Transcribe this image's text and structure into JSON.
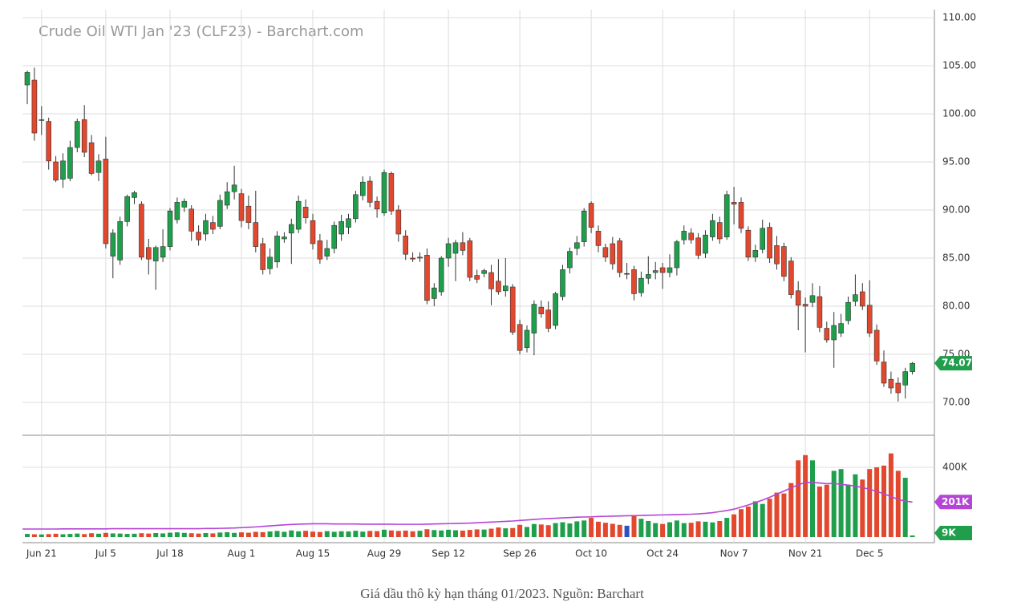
{
  "chart_data": {
    "type": "candlestick",
    "title": "Crude Oil WTI Jan '23 (CLF23) - Barchart.com",
    "caption": "Giá dầu thô kỳ hạn tháng 01/2023. Nguồn: Barchart",
    "up_color": "#1f9e4c",
    "down_color": "#e2482e",
    "flat_color": "#2f4fc4",
    "grid": true,
    "ylim": [
      66.5,
      110.7
    ],
    "yticks": [
      {
        "value": 70,
        "label": "70.00"
      },
      {
        "value": 75,
        "label": "75.00"
      },
      {
        "value": 80,
        "label": "80.00"
      },
      {
        "value": 85,
        "label": "85.00"
      },
      {
        "value": 90,
        "label": "90.00"
      },
      {
        "value": 95,
        "label": "95.00"
      },
      {
        "value": 100,
        "label": "100.00"
      },
      {
        "value": 105,
        "label": "105.00"
      },
      {
        "value": 110,
        "label": "110.00"
      }
    ],
    "y2lim": [
      0,
      584000
    ],
    "y2ticks": [
      {
        "value": 400000,
        "label": "400K"
      }
    ],
    "xticks": [
      {
        "value": 2,
        "label": "Jun 21"
      },
      {
        "value": 11,
        "label": "Jul 5"
      },
      {
        "value": 20,
        "label": "Jul 18"
      },
      {
        "value": 30,
        "label": "Aug 1"
      },
      {
        "value": 40,
        "label": "Aug 15"
      },
      {
        "value": 50,
        "label": "Aug 29"
      },
      {
        "value": 59,
        "label": "Sep 12"
      },
      {
        "value": 69,
        "label": "Sep 26"
      },
      {
        "value": 79,
        "label": "Oct 10"
      },
      {
        "value": 89,
        "label": "Oct 24"
      },
      {
        "value": 99,
        "label": "Nov 7"
      },
      {
        "value": 109,
        "label": "Nov 21"
      },
      {
        "value": 118,
        "label": "Dec 5"
      }
    ],
    "open": [
      103.0,
      103.5,
      99.3,
      99.2,
      95.0,
      93.2,
      93.3,
      96.5,
      99.4,
      97.0,
      93.9,
      95.3,
      85.2,
      84.8,
      88.8,
      91.3,
      90.6,
      86.1,
      84.7,
      85.1,
      86.2,
      89.0,
      90.3,
      90.1,
      87.7,
      87.5,
      88.7,
      88.3,
      90.5,
      91.9,
      91.7,
      90.4,
      88.7,
      86.5,
      83.9,
      84.6,
      87.0,
      87.6,
      88.0,
      90.3,
      88.9,
      86.8,
      85.2,
      86.0,
      87.5,
      88.2,
      89.1,
      91.5,
      93.0,
      90.9,
      89.7,
      93.8,
      90.0,
      87.3,
      85.0,
      85.0,
      85.3,
      80.8,
      81.5,
      85.0,
      85.5,
      86.6,
      86.8,
      83.2,
      83.4,
      83.5,
      82.6,
      81.6,
      82.0,
      78.1,
      75.7,
      77.2,
      79.9,
      79.6,
      78.0,
      81.0,
      84.0,
      86.0,
      86.7,
      90.7,
      87.8,
      86.1,
      86.5,
      86.8,
      83.4,
      83.8,
      81.4,
      82.9,
      83.5,
      84.0,
      83.5,
      84.0,
      86.9,
      87.6,
      87.1,
      85.5,
      87.2,
      88.7,
      87.2,
      90.8,
      90.8,
      87.9,
      85.1,
      85.9,
      88.2,
      86.3,
      86.2,
      84.7,
      81.6,
      80.2,
      80.4,
      81.0,
      77.7,
      76.5,
      77.2,
      78.5,
      80.5,
      81.5,
      80.1,
      77.5,
      74.2,
      72.4,
      72.0,
      71.8,
      73.2
    ],
    "high": [
      104.5,
      104.8,
      100.8,
      99.6,
      95.6,
      95.9,
      97.2,
      99.5,
      100.9,
      97.8,
      95.8,
      97.6,
      88.0,
      89.3,
      91.6,
      92.0,
      90.9,
      87.0,
      86.3,
      88.0,
      90.2,
      91.3,
      91.2,
      90.5,
      88.4,
      89.6,
      89.4,
      91.6,
      92.9,
      94.6,
      92.2,
      91.5,
      92.0,
      87.1,
      86.0,
      87.8,
      87.7,
      89.1,
      91.5,
      91.1,
      89.6,
      87.5,
      86.9,
      88.8,
      89.5,
      89.6,
      92.0,
      93.5,
      93.5,
      91.4,
      94.2,
      94.0,
      90.5,
      87.9,
      85.6,
      85.6,
      86.0,
      82.4,
      85.2,
      87.1,
      86.9,
      87.7,
      87.1,
      83.8,
      83.9,
      84.3,
      84.9,
      85.0,
      82.3,
      78.6,
      78.0,
      80.6,
      80.6,
      80.5,
      81.5,
      84.3,
      86.1,
      87.3,
      90.2,
      90.9,
      88.4,
      86.5,
      87.2,
      87.1,
      84.5,
      84.2,
      83.6,
      85.2,
      84.6,
      84.5,
      85.4,
      86.9,
      88.4,
      88.1,
      87.6,
      87.9,
      89.6,
      89.3,
      92.0,
      92.4,
      91.3,
      88.3,
      86.4,
      89.0,
      88.7,
      87.3,
      86.6,
      85.1,
      82.6,
      80.9,
      82.4,
      82.1,
      78.4,
      79.4,
      79.2,
      81.0,
      83.3,
      82.4,
      82.7,
      78.1,
      75.4,
      73.2,
      72.6,
      73.6,
      74.2
    ],
    "low": [
      101.0,
      97.2,
      97.8,
      94.2,
      92.9,
      92.3,
      93.0,
      96.0,
      95.5,
      93.6,
      93.0,
      86.0,
      82.9,
      84.3,
      88.3,
      90.6,
      84.8,
      83.3,
      81.7,
      84.6,
      85.8,
      88.6,
      89.8,
      86.8,
      86.3,
      86.8,
      87.5,
      88.0,
      90.1,
      91.1,
      88.2,
      88.0,
      85.6,
      83.3,
      83.3,
      84.0,
      86.6,
      84.4,
      87.6,
      88.6,
      85.9,
      84.4,
      84.8,
      85.5,
      86.8,
      87.5,
      88.7,
      91.0,
      90.3,
      89.2,
      89.4,
      89.5,
      86.7,
      84.8,
      84.6,
      84.6,
      80.2,
      80.0,
      81.1,
      84.1,
      82.6,
      85.3,
      82.6,
      82.4,
      83.0,
      80.1,
      81.2,
      81.0,
      77.0,
      75.0,
      75.2,
      74.9,
      78.8,
      77.3,
      77.6,
      80.6,
      83.4,
      85.3,
      86.2,
      87.6,
      85.6,
      84.6,
      83.8,
      83.0,
      82.8,
      80.6,
      81.0,
      82.3,
      82.8,
      81.8,
      83.0,
      83.2,
      86.4,
      86.5,
      84.9,
      85.0,
      86.8,
      86.5,
      86.9,
      88.5,
      87.6,
      84.7,
      84.6,
      85.5,
      84.5,
      83.8,
      82.6,
      80.8,
      77.5,
      75.2,
      79.9,
      77.3,
      76.2,
      73.6,
      76.8,
      78.1,
      80.0,
      79.6,
      76.8,
      73.9,
      71.6,
      70.9,
      70.1,
      70.4,
      72.9
    ],
    "close": [
      104.3,
      98.0,
      99.4,
      95.1,
      93.1,
      95.1,
      96.5,
      99.2,
      96.0,
      93.8,
      95.1,
      86.5,
      87.6,
      88.8,
      91.4,
      91.8,
      85.1,
      84.9,
      86.1,
      86.2,
      89.9,
      90.8,
      90.9,
      87.8,
      86.9,
      88.9,
      88.0,
      91.0,
      91.9,
      92.6,
      88.9,
      88.7,
      86.2,
      83.8,
      85.1,
      87.3,
      87.2,
      88.5,
      90.9,
      89.2,
      86.5,
      84.9,
      86.0,
      88.4,
      88.8,
      89.1,
      91.6,
      92.9,
      90.8,
      90.1,
      93.9,
      89.9,
      87.5,
      85.4,
      84.9,
      85.1,
      80.6,
      81.9,
      85.0,
      86.5,
      86.6,
      85.8,
      83.0,
      82.8,
      83.7,
      81.8,
      81.5,
      82.1,
      77.3,
      75.4,
      77.5,
      80.2,
      79.2,
      77.7,
      81.3,
      83.8,
      85.7,
      86.6,
      89.9,
      88.2,
      86.3,
      85.1,
      84.4,
      83.5,
      83.4,
      81.3,
      82.9,
      83.3,
      83.7,
      83.5,
      84.0,
      86.7,
      87.8,
      86.9,
      85.3,
      87.4,
      88.9,
      87.0,
      91.6,
      90.6,
      88.1,
      85.1,
      85.8,
      88.1,
      85.0,
      84.4,
      83.1,
      81.2,
      80.1,
      80.0,
      81.1,
      77.8,
      76.5,
      78.0,
      78.2,
      80.4,
      81.2,
      80.0,
      77.2,
      74.3,
      72.0,
      71.5,
      71.0,
      73.2,
      74.07
    ],
    "volume": {
      "last_label": "9K",
      "values": [
        18000,
        16000,
        15000,
        17000,
        19000,
        16000,
        18000,
        20000,
        17000,
        22000,
        19000,
        24000,
        21000,
        20000,
        18000,
        19000,
        22000,
        20000,
        23000,
        21000,
        25000,
        27000,
        24000,
        22000,
        20000,
        23000,
        21000,
        26000,
        28000,
        24000,
        27000,
        25000,
        30000,
        28000,
        32000,
        35000,
        30000,
        38000,
        33000,
        36000,
        31000,
        29000,
        34000,
        30000,
        33000,
        32000,
        36000,
        31000,
        35000,
        34000,
        42000,
        38000,
        35000,
        37000,
        33000,
        36000,
        45000,
        40000,
        38000,
        42000,
        39000,
        37000,
        41000,
        44000,
        43000,
        48000,
        55000,
        50000,
        52000,
        70000,
        58000,
        75000,
        72000,
        68000,
        80000,
        85000,
        78000,
        90000,
        95000,
        110000,
        88000,
        82000,
        76000,
        70000,
        65000,
        120000,
        105000,
        92000,
        80000,
        75000,
        85000,
        95000,
        80000,
        82000,
        90000,
        88000,
        84000,
        92000,
        110000,
        130000,
        160000,
        175000,
        205000,
        190000,
        220000,
        255000,
        250000,
        310000,
        440000,
        470000,
        440000,
        290000,
        300000,
        380000,
        390000,
        300000,
        360000,
        330000,
        390000,
        400000,
        410000,
        480000,
        380000,
        340000,
        9000
      ]
    },
    "volume_ma": {
      "color": "#b445d6",
      "last_label": "201K",
      "values": [
        46000,
        46000,
        46000,
        46000,
        46000,
        47000,
        47000,
        47000,
        47000,
        47000,
        47000,
        47000,
        48000,
        48000,
        48000,
        48000,
        48000,
        48000,
        48000,
        48000,
        48000,
        48000,
        48000,
        48000,
        48000,
        49000,
        49000,
        50000,
        51000,
        52000,
        54000,
        56000,
        58000,
        61000,
        64000,
        67000,
        70000,
        72000,
        74000,
        75000,
        76000,
        76000,
        76000,
        75000,
        75000,
        75000,
        75000,
        74000,
        74000,
        74000,
        74000,
        74000,
        73000,
        73000,
        73000,
        73000,
        74000,
        75000,
        76000,
        77000,
        78000,
        79000,
        80000,
        82000,
        84000,
        86000,
        88000,
        90000,
        92000,
        95000,
        98000,
        101000,
        104000,
        106000,
        108000,
        110000,
        112000,
        114000,
        115000,
        116000,
        118000,
        119000,
        120000,
        121000,
        122000,
        123000,
        124000,
        125000,
        126000,
        127000,
        128000,
        129000,
        130000,
        131000,
        133000,
        136000,
        140000,
        146000,
        152000,
        160000,
        172000,
        184000,
        198000,
        212000,
        228000,
        246000,
        264000,
        282000,
        300000,
        312000,
        314000,
        310000,
        306000,
        308000,
        302000,
        298000,
        292000,
        284000,
        274000,
        262000,
        248000,
        232000,
        216000,
        206000,
        201000
      ]
    }
  }
}
